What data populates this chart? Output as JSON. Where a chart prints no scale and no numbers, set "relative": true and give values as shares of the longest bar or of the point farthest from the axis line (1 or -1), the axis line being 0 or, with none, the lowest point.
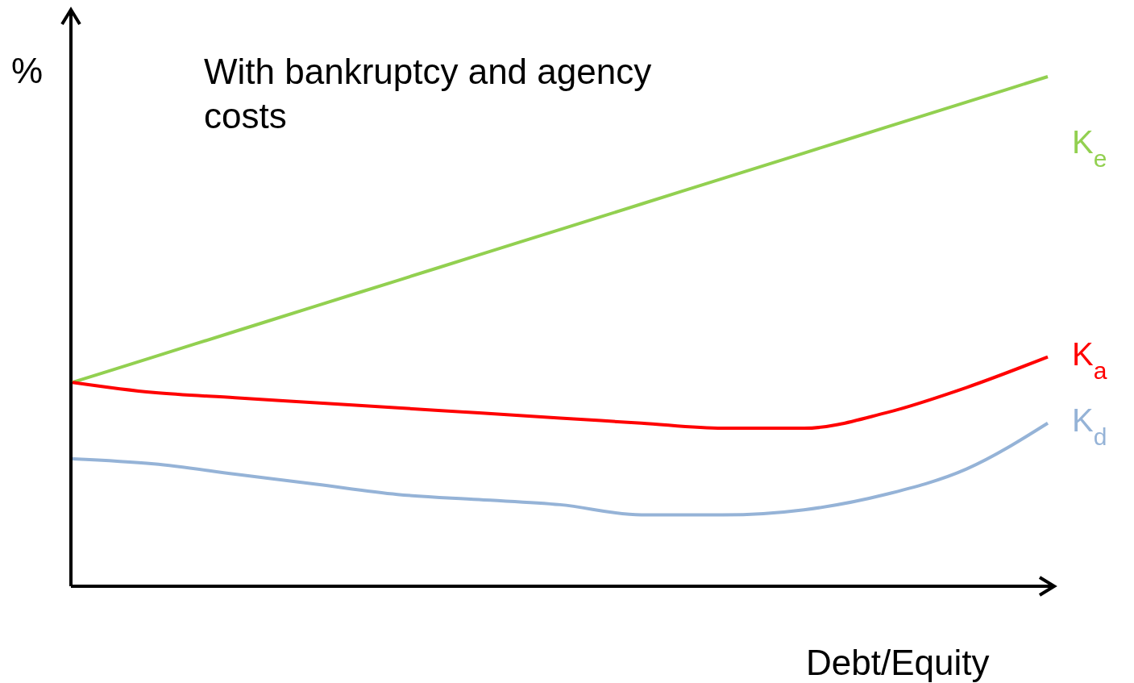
{
  "chart_data": {
    "type": "line",
    "relative": true,
    "title": "With bankruptcy and agency costs",
    "xlabel": "Debt/Equity",
    "ylabel": "%",
    "categories": [
      null,
      null,
      null,
      null,
      null,
      null,
      null,
      null,
      null,
      null,
      null,
      null,
      null
    ],
    "legend": false,
    "marker": "none",
    "line_style": "solid",
    "series": [
      {
        "name": "K$_{e}$",
        "color": "#92d050",
        "values": [
          0.4,
          0.45,
          0.5,
          0.55,
          0.6,
          0.65,
          0.7,
          0.75,
          0.8,
          0.85,
          0.9,
          0.95,
          1.0
        ]
      },
      {
        "name": "K$_{a}$",
        "color": "#ff0000",
        "values": [
          0.4,
          0.38,
          0.37,
          0.36,
          0.35,
          0.34,
          0.33,
          0.32,
          0.31,
          0.31,
          0.34,
          0.39,
          0.45
        ]
      },
      {
        "name": "K$_{d}$",
        "color": "#95b3d7",
        "values": [
          0.25,
          0.24,
          0.22,
          0.2,
          0.18,
          0.17,
          0.16,
          0.14,
          0.14,
          0.15,
          0.18,
          0.23,
          0.32
        ]
      }
    ]
  }
}
